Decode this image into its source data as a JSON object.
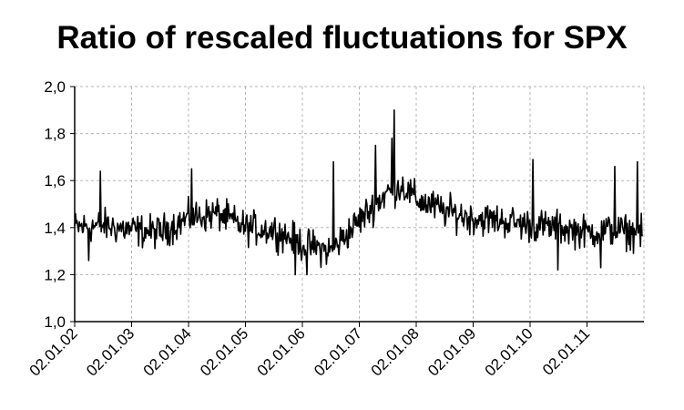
{
  "chart_data": {
    "type": "line",
    "title": "Ratio of rescaled fluctuations for SPX",
    "xlabel": "",
    "ylabel": "",
    "ylim": [
      1.0,
      2.0
    ],
    "y_ticks": [
      "1,0",
      "1,2",
      "1,4",
      "1,6",
      "1,8",
      "2,0"
    ],
    "x_ticks": [
      "02.01.02",
      "02.01.03",
      "02.01.04",
      "02.01.05",
      "02.01.06",
      "02.01.07",
      "02.01.08",
      "02.01.09",
      "02.01.10",
      "02.01.11"
    ],
    "grid": true,
    "x_range": [
      "2002-01-02",
      "2012-01-02"
    ],
    "series": [
      {
        "color": "#000000",
        "x": [
          "2002-01-02",
          "2002-07-02",
          "2003-01-02",
          "2003-07-02",
          "2004-01-02",
          "2004-07-02",
          "2005-01-02",
          "2005-07-02",
          "2006-01-02",
          "2006-07-02",
          "2007-01-02",
          "2007-04-01",
          "2007-07-02",
          "2007-10-01",
          "2008-01-02",
          "2008-07-02",
          "2009-01-02",
          "2009-07-02",
          "2010-01-02",
          "2010-07-02",
          "2011-01-02",
          "2011-07-02",
          "2011-12-30"
        ],
        "values": [
          1.4,
          1.41,
          1.39,
          1.38,
          1.44,
          1.46,
          1.4,
          1.39,
          1.33,
          1.3,
          1.43,
          1.49,
          1.55,
          1.58,
          1.52,
          1.47,
          1.44,
          1.43,
          1.41,
          1.4,
          1.38,
          1.39,
          1.37
        ],
        "noise_amplitude": 0.08,
        "peaks": [
          {
            "x": "2007-08-15",
            "value": 1.9
          },
          {
            "x": "2007-08-01",
            "value": 1.78
          },
          {
            "x": "2007-04-15",
            "value": 1.75
          },
          {
            "x": "2010-01-20",
            "value": 1.69
          },
          {
            "x": "2011-11-20",
            "value": 1.68
          },
          {
            "x": "2011-07-01",
            "value": 1.66
          },
          {
            "x": "2004-01-20",
            "value": 1.65
          },
          {
            "x": "2002-06-15",
            "value": 1.64
          },
          {
            "x": "2006-07-20",
            "value": 1.68
          },
          {
            "x": "2005-11-15",
            "value": 1.2
          },
          {
            "x": "2006-02-01",
            "value": 1.2
          },
          {
            "x": "2002-04-01",
            "value": 1.26
          },
          {
            "x": "2010-07-01",
            "value": 1.22
          },
          {
            "x": "2011-04-01",
            "value": 1.23
          }
        ]
      }
    ]
  }
}
